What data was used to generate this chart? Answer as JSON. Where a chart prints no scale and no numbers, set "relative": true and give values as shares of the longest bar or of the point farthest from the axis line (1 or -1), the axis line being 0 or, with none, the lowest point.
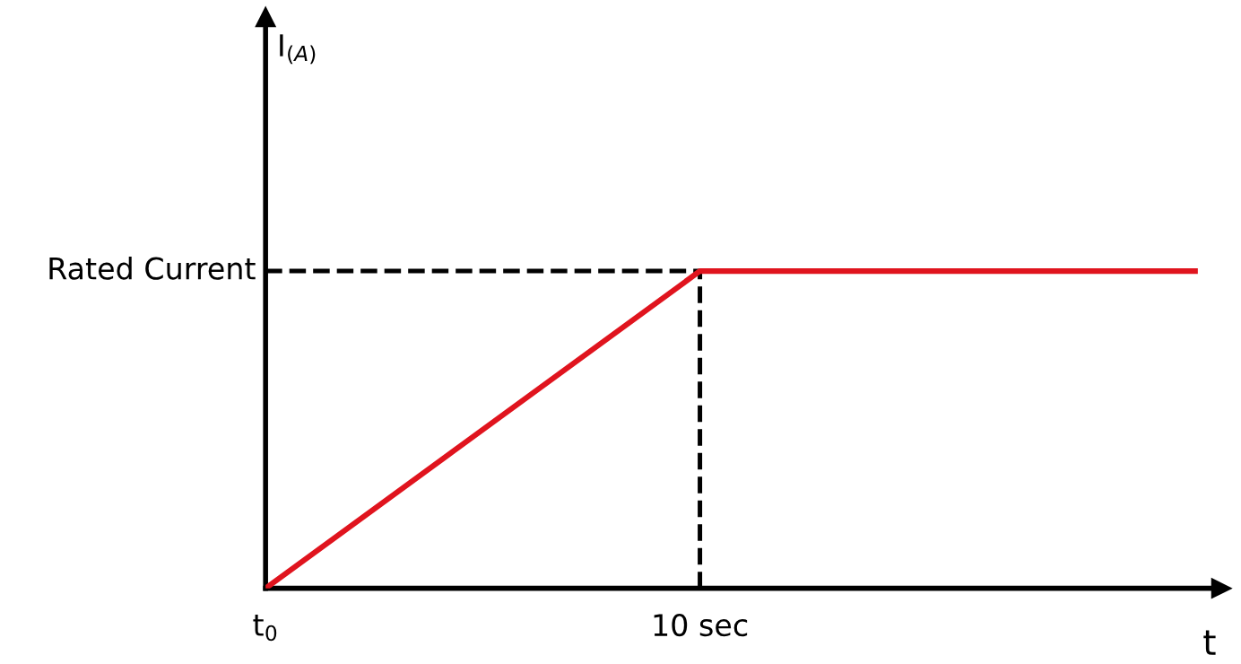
{
  "chart_data": {
    "type": "line",
    "relative": true,
    "annotations": [
      "I$_{(A)}$"
    ],
    "xlabel": "t",
    "x": [
      0,
      10,
      21.4
    ],
    "series": [
      {
        "color": "#e0141e",
        "values": [
          0,
          1,
          1
        ]
      }
    ],
    "xlim": [
      0,
      22
    ],
    "xticks": [
      {
        "value": 0,
        "label": "t$_{0}$"
      },
      {
        "value": 10,
        "label": "10 sec"
      }
    ],
    "ref_lines": [
      {
        "axis": "y",
        "value": 1,
        "label": "Rated Current",
        "color": "#000000",
        "line_style": "dashed"
      },
      {
        "axis": "x",
        "value": 10,
        "label": null,
        "color": "#000000",
        "line_style": "dashed"
      }
    ],
    "grid": false,
    "legend": false,
    "marker": "none",
    "line_style": "solid"
  }
}
